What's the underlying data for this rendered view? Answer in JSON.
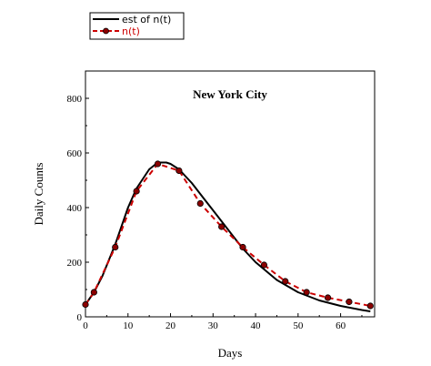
{
  "chart_data": {
    "type": "line",
    "title": "New York City",
    "xlabel": "Days",
    "ylabel": "Daily Counts",
    "xlim": [
      0,
      68
    ],
    "ylim": [
      0,
      900
    ],
    "x_ticks": [
      0,
      10,
      20,
      30,
      40,
      50,
      60
    ],
    "y_ticks": [
      0,
      200,
      400,
      600,
      800
    ],
    "legend_position": "top-left, outside plot",
    "grid": false,
    "series": [
      {
        "name": "est of n(t)",
        "color": "#000000",
        "style": "solid",
        "x": [
          0,
          2,
          4,
          7,
          10,
          12,
          15,
          17,
          19,
          20,
          22,
          25,
          28,
          30,
          33,
          37,
          40,
          45,
          50,
          55,
          60,
          65,
          67
        ],
        "y": [
          45,
          90,
          150,
          265,
          400,
          470,
          540,
          565,
          565,
          560,
          540,
          490,
          430,
          390,
          330,
          250,
          200,
          135,
          90,
          60,
          40,
          25,
          20
        ]
      },
      {
        "name": "n(t)",
        "color": "#cc0000",
        "style": "dashed",
        "marker": "circle",
        "x": [
          0,
          2,
          7,
          12,
          17,
          22,
          27,
          32,
          37,
          42,
          47,
          52,
          57,
          62,
          67
        ],
        "y": [
          45,
          90,
          255,
          460,
          560,
          535,
          415,
          330,
          255,
          190,
          130,
          90,
          70,
          55,
          40
        ]
      }
    ]
  }
}
